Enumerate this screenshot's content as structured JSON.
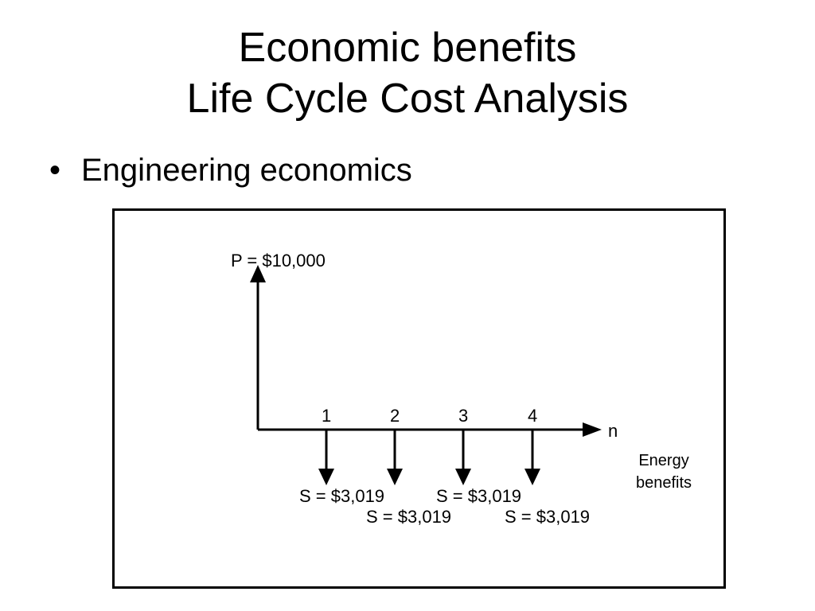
{
  "slide": {
    "title_line1": "Economic benefits",
    "title_line2": "Life Cycle Cost Analysis",
    "bullet_symbol": "•",
    "bullet_text": "Engineering economics"
  },
  "diagram": {
    "present_label": "P = $10,000",
    "axis_label": "n",
    "periods": [
      {
        "n": "1",
        "flow_label": "S = $3,019"
      },
      {
        "n": "2",
        "flow_label": "S = $3,019"
      },
      {
        "n": "3",
        "flow_label": "S = $3,019"
      },
      {
        "n": "4",
        "flow_label": "S = $3,019"
      }
    ],
    "note_line1": "Energy",
    "note_line2": "benefits"
  }
}
